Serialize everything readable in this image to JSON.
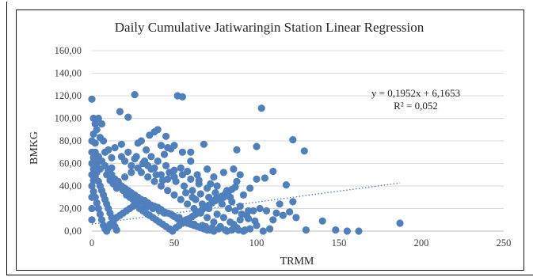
{
  "chart_data": {
    "type": "scatter",
    "title": "Daily Cumulative Jatiwaringin Station Linear Regression",
    "xlabel": "TRMM",
    "ylabel": "BMKG",
    "xlim": [
      0,
      250
    ],
    "ylim": [
      0,
      160
    ],
    "x_ticks": [
      "0",
      "50",
      "100",
      "150",
      "200",
      "250"
    ],
    "y_ticks": [
      "0,00",
      "20,00",
      "40,00",
      "60,00",
      "80,00",
      "100,00",
      "120,00",
      "140,00",
      "160,00"
    ],
    "grid": "horizontal",
    "series_color": "#4f7fbd",
    "trendline": {
      "type": "linear",
      "slope": 0.1952,
      "intercept": 6.1653,
      "style": "dotted",
      "x_range": [
        0,
        187
      ],
      "equation": "y = 0,1952x + 6,1653",
      "r_squared": "R² = 0,052"
    },
    "points": [
      [
        0,
        117
      ],
      [
        1,
        100
      ],
      [
        4,
        100
      ],
      [
        2,
        95
      ],
      [
        6,
        95
      ],
      [
        3,
        90
      ],
      [
        1,
        86
      ],
      [
        5,
        83
      ],
      [
        7,
        80
      ],
      [
        2,
        78
      ],
      [
        10,
        72
      ],
      [
        14,
        74
      ],
      [
        18,
        77
      ],
      [
        8,
        70
      ],
      [
        17,
        106
      ],
      [
        22,
        101
      ],
      [
        26,
        121
      ],
      [
        52,
        120
      ],
      [
        55,
        119
      ],
      [
        103,
        109
      ],
      [
        30,
        80
      ],
      [
        35,
        85
      ],
      [
        38,
        88
      ],
      [
        40,
        90
      ],
      [
        45,
        84
      ],
      [
        28,
        78
      ],
      [
        33,
        72
      ],
      [
        42,
        76
      ],
      [
        46,
        74
      ],
      [
        50,
        76
      ],
      [
        55,
        70
      ],
      [
        48,
        73
      ],
      [
        60,
        70
      ],
      [
        68,
        77
      ],
      [
        88,
        72
      ],
      [
        100,
        75
      ],
      [
        122,
        81
      ],
      [
        129,
        71
      ],
      [
        110,
        53
      ],
      [
        105,
        47
      ],
      [
        96,
        38
      ],
      [
        90,
        50
      ],
      [
        86,
        55
      ],
      [
        80,
        52
      ],
      [
        74,
        48
      ],
      [
        70,
        55
      ],
      [
        64,
        50
      ],
      [
        58,
        53
      ],
      [
        54,
        56
      ],
      [
        60,
        62
      ],
      [
        65,
        45
      ],
      [
        72,
        42
      ],
      [
        76,
        40
      ],
      [
        82,
        36
      ],
      [
        88,
        44
      ],
      [
        92,
        32
      ],
      [
        84,
        30
      ],
      [
        78,
        28
      ],
      [
        100,
        46
      ],
      [
        118,
        41
      ],
      [
        114,
        24
      ],
      [
        122,
        26
      ],
      [
        106,
        18
      ],
      [
        110,
        10
      ],
      [
        112,
        16
      ],
      [
        116,
        14
      ],
      [
        120,
        17
      ],
      [
        124,
        12
      ],
      [
        108,
        2
      ],
      [
        104,
        0
      ],
      [
        100,
        5
      ],
      [
        96,
        2
      ],
      [
        92,
        0
      ],
      [
        88,
        3
      ],
      [
        84,
        8
      ],
      [
        80,
        12
      ],
      [
        76,
        15
      ],
      [
        130,
        1
      ],
      [
        140,
        9
      ],
      [
        148,
        1
      ],
      [
        155,
        0
      ],
      [
        162,
        0
      ],
      [
        187,
        7
      ],
      [
        12,
        65
      ],
      [
        20,
        62
      ],
      [
        24,
        58
      ],
      [
        27,
        66
      ],
      [
        31,
        60
      ],
      [
        36,
        55
      ],
      [
        39,
        50
      ],
      [
        43,
        45
      ],
      [
        47,
        52
      ],
      [
        51,
        44
      ],
      [
        56,
        40
      ],
      [
        61,
        36
      ],
      [
        66,
        33
      ],
      [
        71,
        30
      ],
      [
        75,
        28
      ],
      [
        79,
        24
      ],
      [
        83,
        20
      ],
      [
        87,
        18
      ],
      [
        91,
        15
      ],
      [
        95,
        11
      ],
      [
        99,
        9
      ],
      [
        3,
        60
      ],
      [
        5,
        55
      ],
      [
        9,
        50
      ],
      [
        11,
        45
      ],
      [
        13,
        42
      ],
      [
        15,
        38
      ],
      [
        19,
        36
      ],
      [
        21,
        32
      ],
      [
        23,
        30
      ],
      [
        25,
        28
      ],
      [
        29,
        26
      ],
      [
        32,
        24
      ],
      [
        34,
        22
      ],
      [
        37,
        20
      ],
      [
        41,
        18
      ],
      [
        44,
        16
      ],
      [
        49,
        14
      ],
      [
        53,
        12
      ],
      [
        57,
        10
      ],
      [
        59,
        8
      ],
      [
        62,
        6
      ],
      [
        67,
        5
      ],
      [
        69,
        4
      ],
      [
        73,
        3
      ],
      [
        77,
        2
      ],
      [
        81,
        1
      ],
      [
        85,
        1
      ],
      [
        89,
        1
      ],
      [
        93,
        1
      ],
      [
        2,
        70
      ],
      [
        4,
        66
      ],
      [
        6,
        62
      ],
      [
        8,
        58
      ],
      [
        10,
        54
      ],
      [
        12,
        50
      ],
      [
        14,
        46
      ],
      [
        16,
        42
      ],
      [
        18,
        40
      ],
      [
        20,
        38
      ],
      [
        22,
        36
      ],
      [
        24,
        34
      ],
      [
        26,
        32
      ],
      [
        28,
        30
      ],
      [
        30,
        28
      ],
      [
        32,
        27
      ],
      [
        34,
        25
      ],
      [
        36,
        23
      ],
      [
        38,
        22
      ],
      [
        40,
        21
      ],
      [
        42,
        19
      ],
      [
        44,
        17
      ],
      [
        46,
        16
      ],
      [
        48,
        15
      ],
      [
        50,
        13
      ],
      [
        52,
        11
      ],
      [
        54,
        9
      ],
      [
        56,
        8
      ],
      [
        58,
        7
      ],
      [
        60,
        6
      ],
      [
        62,
        5
      ],
      [
        64,
        4
      ],
      [
        66,
        3
      ],
      [
        68,
        2
      ],
      [
        70,
        1
      ],
      [
        72,
        1
      ],
      [
        74,
        0
      ],
      [
        1,
        35
      ],
      [
        2,
        30
      ],
      [
        3,
        25
      ],
      [
        4,
        20
      ],
      [
        5,
        15
      ],
      [
        6,
        10
      ],
      [
        7,
        5
      ],
      [
        8,
        2
      ],
      [
        9,
        0
      ],
      [
        10,
        3
      ],
      [
        11,
        6
      ],
      [
        13,
        9
      ],
      [
        15,
        12
      ],
      [
        17,
        14
      ],
      [
        19,
        16
      ],
      [
        21,
        18
      ],
      [
        23,
        20
      ],
      [
        25,
        22
      ],
      [
        27,
        24
      ],
      [
        29,
        20
      ],
      [
        31,
        18
      ],
      [
        33,
        16
      ],
      [
        35,
        14
      ],
      [
        37,
        12
      ],
      [
        39,
        10
      ],
      [
        41,
        8
      ],
      [
        43,
        6
      ],
      [
        45,
        4
      ],
      [
        47,
        2
      ],
      [
        49,
        0
      ],
      [
        51,
        3
      ],
      [
        53,
        5
      ],
      [
        55,
        7
      ],
      [
        57,
        9
      ],
      [
        59,
        11
      ],
      [
        61,
        13
      ],
      [
        63,
        15
      ],
      [
        65,
        17
      ],
      [
        67,
        19
      ],
      [
        69,
        21
      ],
      [
        71,
        23
      ],
      [
        73,
        25
      ],
      [
        75,
        27
      ],
      [
        77,
        29
      ],
      [
        79,
        31
      ],
      [
        81,
        33
      ],
      [
        83,
        35
      ],
      [
        85,
        37
      ],
      [
        87,
        39
      ],
      [
        0,
        50
      ],
      [
        0,
        40
      ],
      [
        0,
        30
      ],
      [
        0,
        20
      ],
      [
        0,
        10
      ],
      [
        0,
        60
      ],
      [
        0,
        70
      ],
      [
        0,
        80
      ],
      [
        1,
        45
      ],
      [
        1,
        55
      ],
      [
        1,
        65
      ],
      [
        2,
        48
      ],
      [
        2,
        58
      ],
      [
        3,
        52
      ],
      [
        4,
        44
      ],
      [
        5,
        40
      ],
      [
        6,
        36
      ],
      [
        7,
        32
      ],
      [
        8,
        28
      ],
      [
        9,
        24
      ],
      [
        10,
        20
      ],
      [
        11,
        16
      ],
      [
        12,
        12
      ],
      [
        13,
        8
      ],
      [
        14,
        4
      ],
      [
        15,
        1
      ],
      [
        30,
        52
      ],
      [
        34,
        48
      ],
      [
        38,
        44
      ],
      [
        42,
        40
      ],
      [
        46,
        36
      ],
      [
        50,
        32
      ],
      [
        54,
        28
      ],
      [
        58,
        24
      ],
      [
        62,
        20
      ],
      [
        66,
        16
      ],
      [
        70,
        12
      ],
      [
        74,
        8
      ],
      [
        78,
        4
      ],
      [
        82,
        0
      ],
      [
        86,
        6
      ],
      [
        90,
        10
      ],
      [
        94,
        14
      ],
      [
        98,
        18
      ],
      [
        102,
        20
      ],
      [
        44,
        68
      ],
      [
        40,
        62
      ],
      [
        36,
        66
      ],
      [
        32,
        62
      ],
      [
        28,
        56
      ],
      [
        24,
        52
      ],
      [
        20,
        48
      ],
      [
        16,
        44
      ],
      [
        12,
        56
      ],
      [
        18,
        66
      ],
      [
        22,
        70
      ],
      [
        26,
        64
      ],
      [
        45,
        58
      ],
      [
        50,
        54
      ],
      [
        55,
        50
      ],
      [
        60,
        46
      ],
      [
        65,
        42
      ],
      [
        70,
        38
      ],
      [
        75,
        34
      ],
      [
        80,
        30
      ],
      [
        85,
        26
      ],
      [
        90,
        22
      ],
      [
        95,
        18
      ],
      [
        63,
        28
      ],
      [
        67,
        24
      ],
      [
        71,
        20
      ],
      [
        50,
        48
      ],
      [
        46,
        46
      ],
      [
        42,
        50
      ],
      [
        38,
        56
      ],
      [
        34,
        58
      ],
      [
        57,
        34
      ],
      [
        61,
        30
      ]
    ]
  }
}
